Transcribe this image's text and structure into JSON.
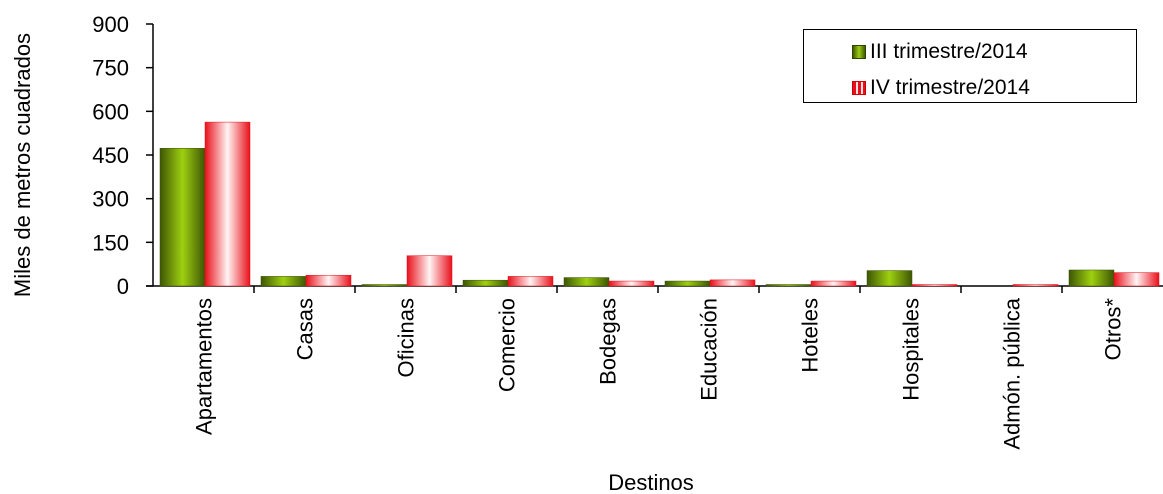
{
  "chart_data": {
    "type": "bar",
    "title": "",
    "xlabel": "Destinos",
    "ylabel": "Miles de metros cuadrados",
    "ylim": [
      0,
      900
    ],
    "yticks": [
      0,
      150,
      300,
      450,
      600,
      750,
      900
    ],
    "categories": [
      "Apartamentos",
      "Casas",
      "Oficinas",
      "Comercio",
      "Bodegas",
      "Educación",
      "Hoteles",
      "Hospitales",
      "Admón. pública",
      "Otros*"
    ],
    "series": [
      {
        "name": "III trimestre/2014",
        "color": "#6b8e0a",
        "values": [
          473,
          33,
          2,
          20,
          29,
          17,
          3,
          53,
          0,
          55
        ]
      },
      {
        "name": "IV trimestre/2014",
        "color": "#ff1a24",
        "values": [
          563,
          37,
          104,
          33,
          17,
          21,
          17,
          3,
          3,
          46
        ]
      }
    ],
    "legend_position": "top-right",
    "grid": false
  }
}
